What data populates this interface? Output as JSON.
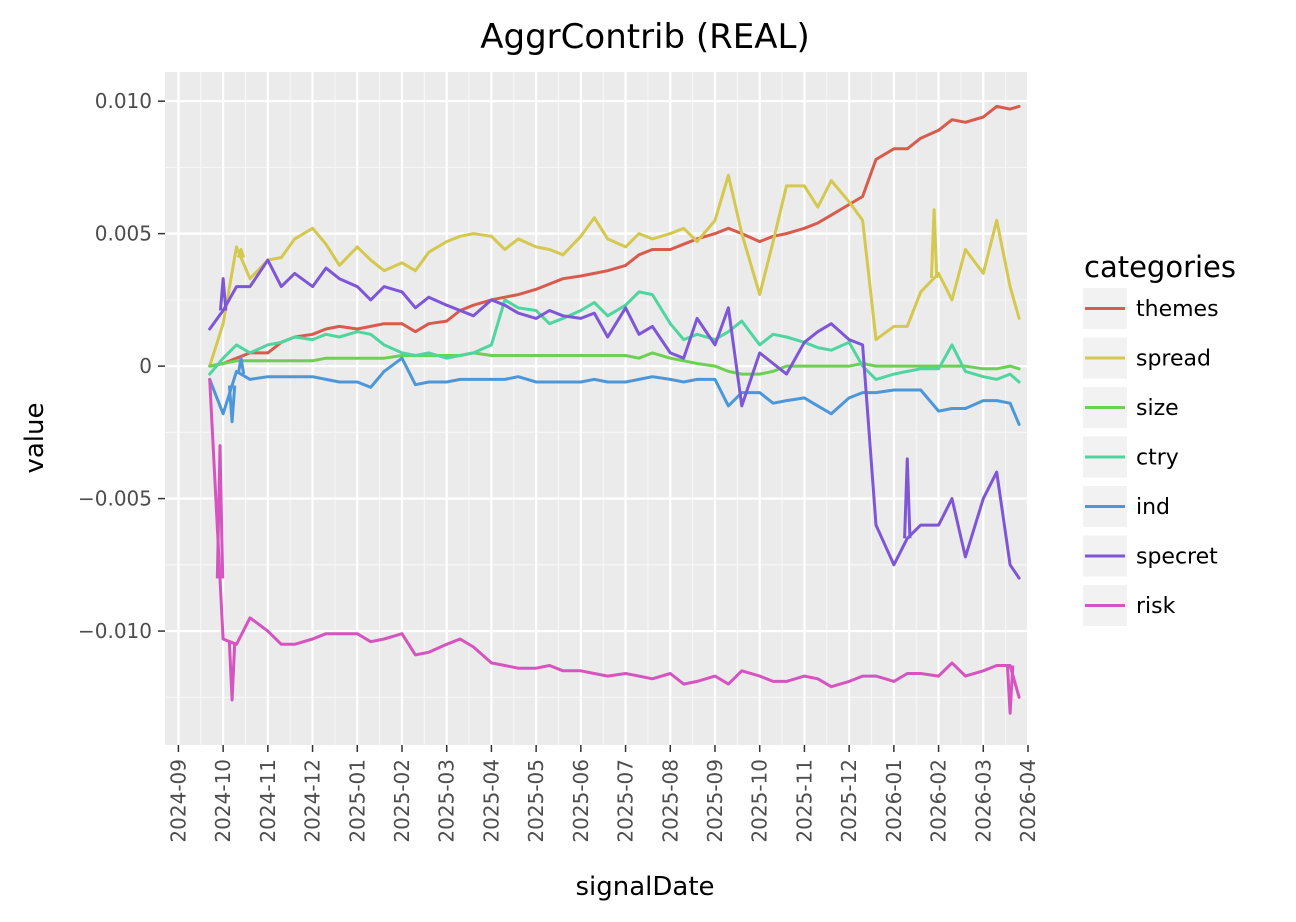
{
  "chart_data": {
    "type": "line",
    "title": "AggrContrib (REAL)",
    "xlabel": "signalDate",
    "ylabel": "value",
    "legend_title": "categories",
    "legend_position": "right",
    "grid": true,
    "ylim": [
      -0.0143,
      0.0111
    ],
    "y_ticks": [
      {
        "value": 0.01,
        "label": "0.010"
      },
      {
        "value": 0.005,
        "label": "0.005"
      },
      {
        "value": 0,
        "label": "0"
      },
      {
        "value": -0.005,
        "label": "−0.005"
      },
      {
        "value": -0.01,
        "label": "−0.010"
      }
    ],
    "x_ticks": [
      "2024-09",
      "2024-10",
      "2024-11",
      "2024-12",
      "2025-01",
      "2025-02",
      "2025-03",
      "2025-04",
      "2025-05",
      "2025-06",
      "2025-07",
      "2025-08",
      "2025-09",
      "2025-10",
      "2025-11",
      "2025-12",
      "2026-01",
      "2026-02",
      "2026-03",
      "2026-04"
    ],
    "x_start": "2024-09",
    "x_span_months": [
      -0.3,
      19.0
    ],
    "x": [
      0.7,
      1.0,
      1.3,
      1.6,
      2.0,
      2.3,
      2.6,
      3.0,
      3.3,
      3.6,
      4.0,
      4.3,
      4.6,
      5.0,
      5.3,
      5.6,
      6.0,
      6.3,
      6.6,
      7.0,
      7.3,
      7.6,
      8.0,
      8.3,
      8.6,
      9.0,
      9.3,
      9.6,
      10.0,
      10.3,
      10.6,
      11.0,
      11.3,
      11.6,
      12.0,
      12.3,
      12.6,
      13.0,
      13.3,
      13.6,
      14.0,
      14.3,
      14.6,
      15.0,
      15.3,
      15.6,
      16.0,
      16.3,
      16.6,
      17.0,
      17.3,
      17.6,
      18.0,
      18.3,
      18.6,
      18.8
    ],
    "series": [
      {
        "name": "themes",
        "color": "#d95b4e",
        "values": [
          0.0,
          0.0001,
          0.0003,
          0.0005,
          0.0005,
          0.0009,
          0.0011,
          0.0012,
          0.0014,
          0.0015,
          0.0014,
          0.0015,
          0.0016,
          0.0016,
          0.0013,
          0.0016,
          0.0017,
          0.0021,
          0.0023,
          0.0025,
          0.0026,
          0.0027,
          0.0029,
          0.0031,
          0.0033,
          0.0034,
          0.0035,
          0.0036,
          0.0038,
          0.0042,
          0.0044,
          0.0044,
          0.0046,
          0.0048,
          0.005,
          0.0052,
          0.005,
          0.0047,
          0.0049,
          0.005,
          0.0052,
          0.0054,
          0.0057,
          0.0061,
          0.0064,
          0.0078,
          0.0082,
          0.0082,
          0.0086,
          0.0089,
          0.0093,
          0.0092,
          0.0094,
          0.0098,
          0.0097,
          0.0098
        ]
      },
      {
        "name": "spread",
        "color": "#d4c84f",
        "values": [
          0.0,
          0.0016,
          0.0045,
          0.0033,
          0.004,
          0.0041,
          0.0048,
          0.0052,
          0.0046,
          0.0038,
          0.0045,
          0.004,
          0.0036,
          0.0039,
          0.0036,
          0.0043,
          0.0047,
          0.0049,
          0.005,
          0.0049,
          0.0044,
          0.0048,
          0.0045,
          0.0044,
          0.0042,
          0.0049,
          0.0056,
          0.0048,
          0.0045,
          0.005,
          0.0048,
          0.005,
          0.0052,
          0.0047,
          0.0055,
          0.0072,
          0.005,
          0.0027,
          0.0047,
          0.0068,
          0.0068,
          0.006,
          0.007,
          0.0062,
          0.0055,
          0.001,
          0.0015,
          0.0015,
          0.0028,
          0.0035,
          0.0025,
          0.0044,
          0.0035,
          0.0055,
          0.003,
          0.0018
        ]
      },
      {
        "name": "size",
        "color": "#6cd152",
        "values": [
          0.0,
          0.0001,
          0.0002,
          0.0002,
          0.0002,
          0.0002,
          0.0002,
          0.0002,
          0.0003,
          0.0003,
          0.0003,
          0.0003,
          0.0003,
          0.0004,
          0.0004,
          0.0004,
          0.0004,
          0.0004,
          0.0005,
          0.0004,
          0.0004,
          0.0004,
          0.0004,
          0.0004,
          0.0004,
          0.0004,
          0.0004,
          0.0004,
          0.0004,
          0.0003,
          0.0005,
          0.0003,
          0.0002,
          0.0001,
          0.0,
          -0.0002,
          -0.0003,
          -0.0003,
          -0.0002,
          0.0,
          0.0,
          0.0,
          0.0,
          0.0,
          0.0001,
          0.0,
          0.0,
          0.0,
          0.0,
          0.0,
          0.0,
          0.0,
          -0.0001,
          -0.0001,
          0.0,
          -0.0001
        ]
      },
      {
        "name": "ctry",
        "color": "#4fd6a0",
        "values": [
          -0.0003,
          0.0003,
          0.0008,
          0.0005,
          0.0008,
          0.0009,
          0.0011,
          0.001,
          0.0012,
          0.0011,
          0.0013,
          0.0012,
          0.0008,
          0.0005,
          0.0004,
          0.0005,
          0.0003,
          0.0004,
          0.0005,
          0.0008,
          0.0025,
          0.0022,
          0.0021,
          0.0016,
          0.0018,
          0.0021,
          0.0024,
          0.0019,
          0.0023,
          0.0028,
          0.0027,
          0.0016,
          0.001,
          0.0012,
          0.001,
          0.0013,
          0.0017,
          0.0008,
          0.0012,
          0.0011,
          0.0009,
          0.0007,
          0.0006,
          0.0009,
          0.0,
          -0.0005,
          -0.0003,
          -0.0002,
          -0.0001,
          -0.0001,
          0.0008,
          -0.0002,
          -0.0004,
          -0.0005,
          -0.0003,
          -0.0006
        ]
      },
      {
        "name": "ind",
        "color": "#4c97d9",
        "values": [
          -0.0005,
          -0.0018,
          -0.0002,
          -0.0005,
          -0.0004,
          -0.0004,
          -0.0004,
          -0.0004,
          -0.0005,
          -0.0006,
          -0.0006,
          -0.0008,
          -0.0002,
          0.0003,
          -0.0007,
          -0.0006,
          -0.0006,
          -0.0005,
          -0.0005,
          -0.0005,
          -0.0005,
          -0.0004,
          -0.0006,
          -0.0006,
          -0.0006,
          -0.0006,
          -0.0005,
          -0.0006,
          -0.0006,
          -0.0005,
          -0.0004,
          -0.0005,
          -0.0006,
          -0.0005,
          -0.0005,
          -0.0015,
          -0.001,
          -0.001,
          -0.0014,
          -0.0013,
          -0.0012,
          -0.0015,
          -0.0018,
          -0.0012,
          -0.001,
          -0.001,
          -0.0009,
          -0.0009,
          -0.0009,
          -0.0017,
          -0.0016,
          -0.0016,
          -0.0013,
          -0.0013,
          -0.0014,
          -0.0022
        ]
      },
      {
        "name": "specret",
        "color": "#7e56d8",
        "values": [
          0.0014,
          0.0021,
          0.003,
          0.003,
          0.004,
          0.003,
          0.0035,
          0.003,
          0.0037,
          0.0033,
          0.003,
          0.0025,
          0.003,
          0.0028,
          0.0022,
          0.0026,
          0.0023,
          0.0021,
          0.0019,
          0.0025,
          0.0023,
          0.002,
          0.0018,
          0.0021,
          0.0019,
          0.0018,
          0.002,
          0.0011,
          0.0022,
          0.0012,
          0.0015,
          0.0005,
          0.0003,
          0.0018,
          0.0008,
          0.0022,
          -0.0015,
          0.0005,
          0.0001,
          -0.0003,
          0.0009,
          0.0013,
          0.0016,
          0.001,
          0.0008,
          -0.006,
          -0.0075,
          -0.0065,
          -0.006,
          -0.006,
          -0.005,
          -0.0072,
          -0.005,
          -0.004,
          -0.0075,
          -0.008
        ]
      },
      {
        "name": "risk",
        "color": "#d654c0",
        "values": [
          -0.0005,
          -0.0103,
          -0.0105,
          -0.0095,
          -0.01,
          -0.0105,
          -0.0105,
          -0.0103,
          -0.0101,
          -0.0101,
          -0.0101,
          -0.0104,
          -0.0103,
          -0.0101,
          -0.0109,
          -0.0108,
          -0.0105,
          -0.0103,
          -0.0106,
          -0.0112,
          -0.0113,
          -0.0114,
          -0.0114,
          -0.0113,
          -0.0115,
          -0.0115,
          -0.0116,
          -0.0117,
          -0.0116,
          -0.0117,
          -0.0118,
          -0.0116,
          -0.012,
          -0.0119,
          -0.0117,
          -0.012,
          -0.0115,
          -0.0117,
          -0.0119,
          -0.0119,
          -0.0117,
          -0.0118,
          -0.0121,
          -0.0119,
          -0.0117,
          -0.0117,
          -0.0119,
          -0.0116,
          -0.0116,
          -0.0117,
          -0.0112,
          -0.0117,
          -0.0115,
          -0.0113,
          -0.0113,
          -0.0125
        ]
      }
    ],
    "spikes": [
      {
        "series": "risk",
        "x": 0.93,
        "y": -0.003
      },
      {
        "series": "risk",
        "x": 1.2,
        "y": -0.0126
      },
      {
        "series": "specret",
        "x": 1.0,
        "y": 0.0033
      },
      {
        "series": "ind",
        "x": 1.2,
        "y": -0.0021
      },
      {
        "series": "ind",
        "x": 1.4,
        "y": 0.0003
      },
      {
        "series": "spread",
        "x": 1.4,
        "y": 0.0044
      },
      {
        "series": "spread",
        "x": 16.9,
        "y": 0.0059
      },
      {
        "series": "specret",
        "x": 16.3,
        "y": -0.0035
      },
      {
        "series": "risk",
        "x": 18.6,
        "y": -0.0131
      }
    ]
  }
}
